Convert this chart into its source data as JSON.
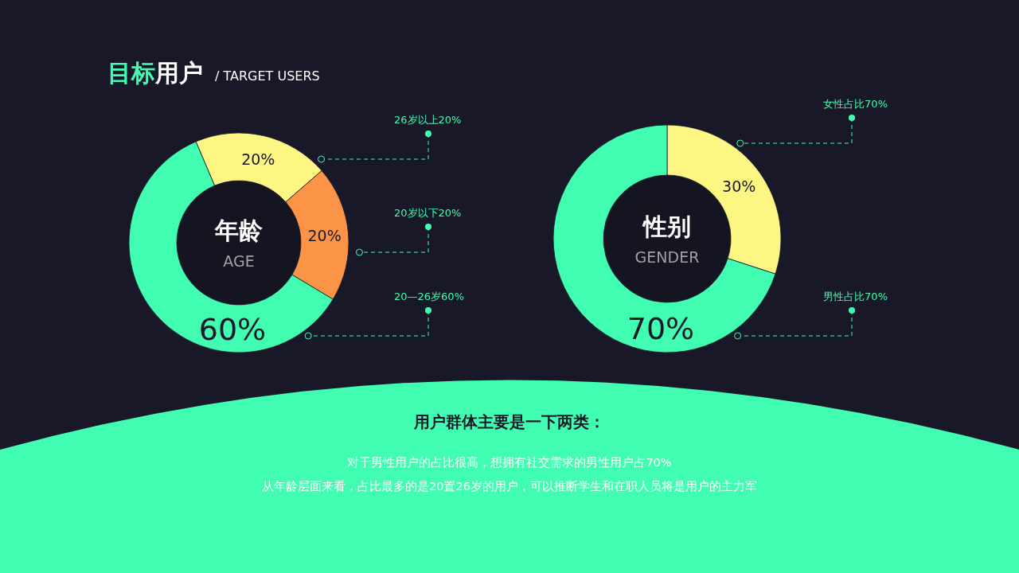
{
  "chart_data": [
    {
      "type": "other",
      "title": "目标用户",
      "subtitle": "/ TARGET USERS"
    },
    {
      "type": "donut",
      "title": "年龄",
      "subtitle": "AGE",
      "categories": [
        "26岁以上20%",
        "20岁以下20%",
        "20—26岁60%"
      ],
      "values": [
        20,
        20,
        60
      ],
      "value_labels": [
        "20%",
        "20%",
        "60%"
      ],
      "colors": [
        "#fdf683",
        "#fc9447",
        "#40fdb2"
      ]
    },
    {
      "type": "donut",
      "title": "性别",
      "subtitle": "GENDER",
      "categories": [
        "女性占比70%",
        "男性占比70%"
      ],
      "values": [
        30,
        70
      ],
      "value_labels": [
        "30%",
        "70%"
      ],
      "colors": [
        "#fdf683",
        "#40fdb2"
      ]
    },
    {
      "type": "other",
      "title": "用户群体主要是一下两类：",
      "annotations": [
        "对于男性用户的占比很高，想拥有社交需求的男性用户占70%",
        "从年龄层面来看，占比最多的是20置26岁的用户，可以推断学生和在职人员将是用户的主力军"
      ]
    }
  ]
}
